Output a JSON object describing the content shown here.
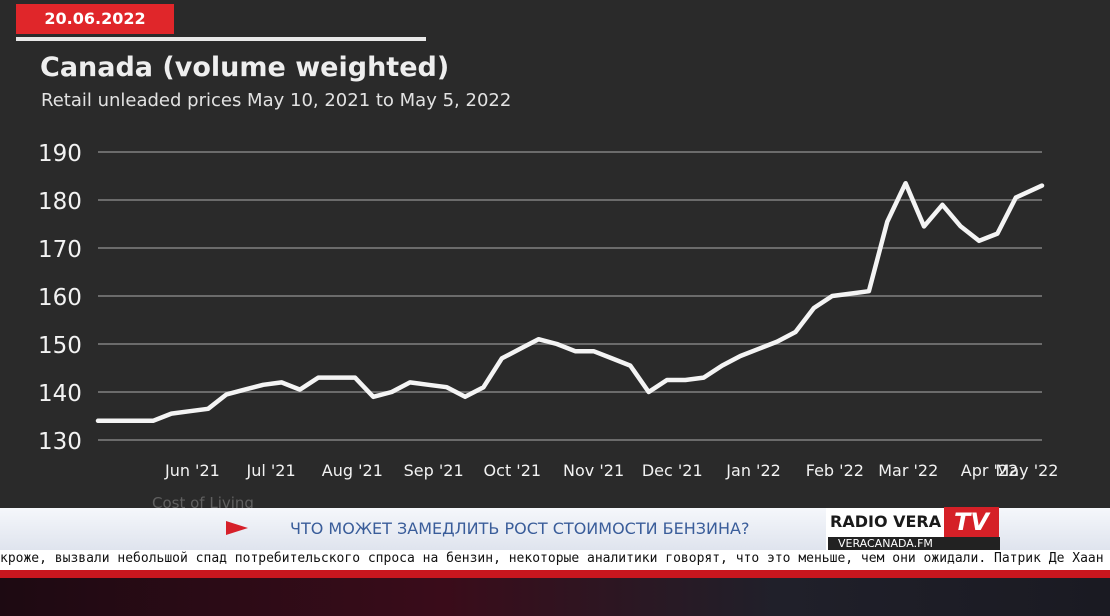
{
  "date_badge": "20.06.2022",
  "chart_data": {
    "type": "line",
    "title": "Canada (volume weighted)",
    "subtitle": "Retail unleaded prices May 10, 2021 to May 5, 2022",
    "ylim": [
      130,
      190
    ],
    "yticks": [
      130,
      140,
      150,
      160,
      170,
      180,
      190
    ],
    "xticks": [
      "Jun '21",
      "Jul '21",
      "Aug '21",
      "Sep '21",
      "Oct '21",
      "Nov '21",
      "Dec '21",
      "Jan '22",
      "Feb '22",
      "Mar '22",
      "Apr '22",
      "May '22"
    ],
    "xlim": [
      "2021-05-10",
      "2022-05-05"
    ],
    "grid": true,
    "series": [
      {
        "color": "#f4f4f4",
        "points": [
          [
            "2021-05-10",
            134
          ],
          [
            "2021-05-17",
            134
          ],
          [
            "2021-05-24",
            134
          ],
          [
            "2021-05-31",
            134
          ],
          [
            "2021-06-07",
            135.5
          ],
          [
            "2021-06-14",
            136
          ],
          [
            "2021-06-21",
            136.5
          ],
          [
            "2021-06-28",
            139.5
          ],
          [
            "2021-07-05",
            140.5
          ],
          [
            "2021-07-12",
            141.5
          ],
          [
            "2021-07-19",
            142
          ],
          [
            "2021-07-26",
            140.5
          ],
          [
            "2021-08-02",
            143
          ],
          [
            "2021-08-09",
            143
          ],
          [
            "2021-08-16",
            143
          ],
          [
            "2021-08-23",
            139
          ],
          [
            "2021-08-30",
            140
          ],
          [
            "2021-09-06",
            142
          ],
          [
            "2021-09-13",
            141.5
          ],
          [
            "2021-09-20",
            141
          ],
          [
            "2021-09-27",
            139
          ],
          [
            "2021-10-04",
            141
          ],
          [
            "2021-10-11",
            147
          ],
          [
            "2021-10-18",
            149
          ],
          [
            "2021-10-25",
            151
          ],
          [
            "2021-11-01",
            150
          ],
          [
            "2021-11-08",
            148.5
          ],
          [
            "2021-11-15",
            148.5
          ],
          [
            "2021-11-22",
            147
          ],
          [
            "2021-11-29",
            145.5
          ],
          [
            "2021-12-06",
            140
          ],
          [
            "2021-12-13",
            142.5
          ],
          [
            "2021-12-20",
            142.5
          ],
          [
            "2021-12-27",
            143
          ],
          [
            "2022-01-03",
            145.5
          ],
          [
            "2022-01-10",
            147.5
          ],
          [
            "2022-01-17",
            149
          ],
          [
            "2022-01-24",
            150.5
          ],
          [
            "2022-01-31",
            152.5
          ],
          [
            "2022-02-07",
            157.5
          ],
          [
            "2022-02-14",
            160
          ],
          [
            "2022-02-21",
            160.5
          ],
          [
            "2022-02-28",
            161
          ],
          [
            "2022-03-07",
            175.5
          ],
          [
            "2022-03-14",
            183.5
          ],
          [
            "2022-03-21",
            174.5
          ],
          [
            "2022-03-28",
            179
          ],
          [
            "2022-04-04",
            174.5
          ],
          [
            "2022-04-11",
            171.5
          ],
          [
            "2022-04-18",
            173
          ],
          [
            "2022-04-25",
            180.5
          ],
          [
            "2022-05-05",
            183
          ]
        ]
      }
    ],
    "footnote": "Cost of Living"
  },
  "lower_third": {
    "headline": "ЧТО МОЖЕТ ЗАМЕДЛИТЬ РОСТ СТОИМОСТИ БЕНЗИНА?",
    "logo_text": "RADIO VERA",
    "logo_tv": "TV",
    "logo_url": "VERACANADA.FM"
  },
  "ticker": {
    "text": "кроже, вызвали небольшой спад потребительского спроса на бензин, некоторые аналитики говорят, что это меньше, чем они ожидали. Патрик Де Хаан из GasBuddy"
  },
  "colors": {
    "accent_red": "#e0262a",
    "background": "#2a2a2a",
    "line": "#f4f4f4"
  }
}
